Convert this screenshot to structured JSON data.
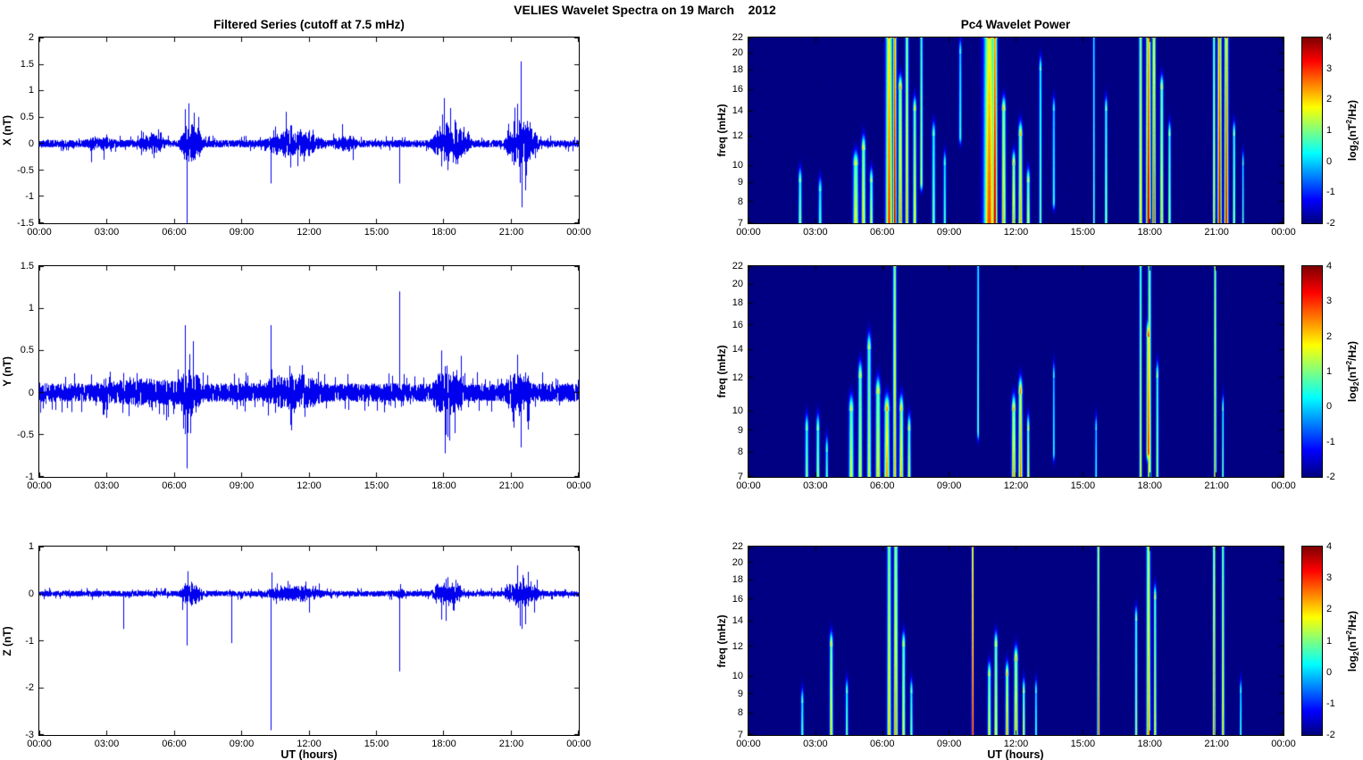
{
  "figure_title": "VELIES Wavelet Spectra on 19 March    2012",
  "panels": {
    "left_title": "Filtered Series (cutoff at 7.5 mHz)",
    "right_title": "Pc4 Wavelet Power"
  },
  "x_axis": {
    "label": "UT (hours)",
    "range_hours": [
      0,
      24
    ],
    "tick_hours": [
      0,
      3,
      6,
      9,
      12,
      15,
      18,
      21,
      24
    ],
    "tick_labels": [
      "00:00",
      "03:00",
      "06:00",
      "09:00",
      "12:00",
      "15:00",
      "18:00",
      "21:00",
      "00:00"
    ]
  },
  "colorbar": {
    "range": [
      -2,
      4
    ],
    "ticks": [
      4,
      3,
      2,
      1,
      0,
      -1,
      -2
    ],
    "label_parts": {
      "pre": "log",
      "sub": "2",
      "mid": "(nT",
      "sup": "2",
      "post": "/Hz)"
    },
    "colormap": "jet"
  },
  "style": {
    "line_color": "#0000ee",
    "axis_color": "#000000",
    "background": "#ffffff",
    "heatmap_background_value": -2
  },
  "chart_data": [
    {
      "id": "x-series",
      "type": "line",
      "title": "Filtered Series (cutoff at 7.5 mHz)",
      "ylabel": "X (nT)",
      "ylim": [
        -1.5,
        2
      ],
      "yticks": [
        2,
        1.5,
        1,
        0.5,
        0,
        -0.5,
        -1,
        -1.5
      ],
      "x_range_hours": [
        0,
        24
      ],
      "seed": 11,
      "noise_amp": 0.07,
      "bursts": [
        [
          2.0,
          3.5,
          0.05
        ],
        [
          4.4,
          5.7,
          0.1
        ],
        [
          6.2,
          7.3,
          0.28
        ],
        [
          9.9,
          12.7,
          0.16
        ],
        [
          13.0,
          14.2,
          0.08
        ],
        [
          17.4,
          19.3,
          0.26
        ],
        [
          20.7,
          22.3,
          0.34
        ]
      ],
      "spikes": [
        [
          2.3,
          -0.35
        ],
        [
          6.5,
          0.65
        ],
        [
          6.55,
          -1.5
        ],
        [
          10.3,
          -0.75
        ],
        [
          11.0,
          0.6
        ],
        [
          11.2,
          -0.45
        ],
        [
          16.05,
          -0.75
        ],
        [
          17.95,
          0.55
        ],
        [
          18.2,
          -0.5
        ],
        [
          18.5,
          0.45
        ],
        [
          21.3,
          0.75
        ],
        [
          21.45,
          1.55
        ],
        [
          21.5,
          -1.2
        ],
        [
          21.7,
          -0.6
        ]
      ]
    },
    {
      "id": "y-series",
      "type": "line",
      "ylabel": "Y (nT)",
      "ylim": [
        -1,
        1.5
      ],
      "yticks": [
        1.5,
        1,
        0.5,
        0,
        -0.5,
        -1
      ],
      "x_range_hours": [
        0,
        24
      ],
      "seed": 22,
      "noise_amp": 0.11,
      "bursts": [
        [
          2.5,
          7.5,
          0.05
        ],
        [
          6.2,
          7.2,
          0.14
        ],
        [
          9.9,
          12.7,
          0.1
        ],
        [
          17.4,
          19.0,
          0.16
        ],
        [
          20.7,
          22.0,
          0.12
        ]
      ],
      "spikes": [
        [
          3.0,
          -0.3
        ],
        [
          6.5,
          0.8
        ],
        [
          6.55,
          -0.9
        ],
        [
          10.3,
          0.8
        ],
        [
          16.05,
          1.2
        ],
        [
          17.9,
          0.5
        ],
        [
          18.1,
          -0.5
        ],
        [
          21.3,
          0.45
        ],
        [
          21.45,
          -0.65
        ]
      ]
    },
    {
      "id": "z-series",
      "type": "line",
      "ylabel": "Z (nT)",
      "ylim": [
        -3,
        1
      ],
      "yticks": [
        1,
        0,
        -1,
        -2,
        -3
      ],
      "x_range_hours": [
        0,
        24
      ],
      "seed": 33,
      "noise_amp": 0.06,
      "bursts": [
        [
          6.2,
          7.3,
          0.16
        ],
        [
          9.9,
          12.7,
          0.1
        ],
        [
          15.9,
          16.3,
          0.06
        ],
        [
          17.4,
          18.9,
          0.2
        ],
        [
          20.7,
          22.3,
          0.22
        ]
      ],
      "spikes": [
        [
          3.75,
          -0.75
        ],
        [
          6.55,
          -1.1
        ],
        [
          8.55,
          -1.05
        ],
        [
          10.3,
          -2.9
        ],
        [
          10.35,
          0.45
        ],
        [
          12.0,
          -0.4
        ],
        [
          16.05,
          -1.65
        ],
        [
          17.9,
          -0.55
        ],
        [
          18.2,
          0.35
        ],
        [
          21.3,
          0.6
        ],
        [
          21.5,
          -0.75
        ]
      ]
    },
    {
      "id": "x-wavelet",
      "type": "heatmap",
      "title": "Pc4 Wavelet Power",
      "ylabel": "freq (mHz)",
      "flim": [
        7,
        22
      ],
      "yticks": [
        22,
        20,
        18,
        16,
        14,
        12,
        10,
        9,
        8,
        7
      ],
      "scale": "log",
      "clim": [
        -2,
        4
      ],
      "seed": 44,
      "events": [
        [
          2.3,
          0.05,
          7,
          9,
          1.4
        ],
        [
          3.2,
          0.05,
          7,
          8.5,
          1.0
        ],
        [
          4.8,
          0.08,
          7,
          10,
          1.9
        ],
        [
          5.15,
          0.06,
          7,
          11,
          2.1
        ],
        [
          5.5,
          0.05,
          7,
          9,
          1.7
        ],
        [
          6.3,
          0.1,
          7,
          22,
          3.0
        ],
        [
          6.55,
          0.05,
          7,
          22,
          3.9
        ],
        [
          6.8,
          0.06,
          7,
          16,
          2.5
        ],
        [
          7.1,
          0.05,
          7,
          22,
          2.2
        ],
        [
          7.45,
          0.05,
          7,
          14,
          2.0
        ],
        [
          7.75,
          0.04,
          9,
          22,
          1.7
        ],
        [
          8.3,
          0.05,
          7,
          12,
          1.2
        ],
        [
          8.8,
          0.04,
          7,
          10,
          1.0
        ],
        [
          9.5,
          0.04,
          12,
          20,
          0.8
        ],
        [
          10.8,
          0.16,
          7,
          22,
          2.9
        ],
        [
          11.05,
          0.07,
          7,
          22,
          3.8
        ],
        [
          11.45,
          0.06,
          7,
          14,
          2.3
        ],
        [
          11.9,
          0.05,
          7,
          10,
          2.5
        ],
        [
          12.2,
          0.06,
          7,
          12,
          2.3
        ],
        [
          12.55,
          0.05,
          7,
          9,
          1.9
        ],
        [
          13.1,
          0.04,
          7,
          18,
          1.2
        ],
        [
          13.7,
          0.04,
          8,
          14,
          0.8
        ],
        [
          15.5,
          0.03,
          7,
          22,
          1.2
        ],
        [
          16.05,
          0.04,
          7,
          14,
          1.5
        ],
        [
          17.6,
          0.05,
          7,
          22,
          2.2
        ],
        [
          17.95,
          0.07,
          7,
          22,
          3.7
        ],
        [
          18.2,
          0.05,
          7,
          22,
          3.1
        ],
        [
          18.55,
          0.05,
          7,
          16,
          2.1
        ],
        [
          18.9,
          0.04,
          7,
          12,
          1.6
        ],
        [
          20.9,
          0.04,
          7,
          22,
          2.1
        ],
        [
          21.15,
          0.06,
          7,
          22,
          3.8
        ],
        [
          21.45,
          0.06,
          7,
          22,
          3.4
        ],
        [
          21.8,
          0.04,
          7,
          12,
          1.6
        ],
        [
          22.2,
          0.03,
          7,
          10,
          1.0
        ]
      ]
    },
    {
      "id": "y-wavelet",
      "type": "heatmap",
      "ylabel": "freq (mHz)",
      "flim": [
        7,
        22
      ],
      "yticks": [
        22,
        20,
        18,
        16,
        14,
        12,
        10,
        9,
        8,
        7
      ],
      "scale": "log",
      "clim": [
        -2,
        4
      ],
      "seed": 55,
      "events": [
        [
          2.6,
          0.05,
          7,
          9,
          1.3
        ],
        [
          3.1,
          0.05,
          7,
          9,
          1.5
        ],
        [
          3.5,
          0.04,
          7,
          8,
          1.1
        ],
        [
          4.6,
          0.07,
          7,
          10,
          1.7
        ],
        [
          5.0,
          0.06,
          7,
          12,
          1.9
        ],
        [
          5.4,
          0.06,
          7,
          14,
          1.7
        ],
        [
          5.8,
          0.07,
          7,
          11,
          2.1
        ],
        [
          6.2,
          0.08,
          7,
          10,
          2.5
        ],
        [
          6.55,
          0.05,
          7,
          22,
          2.3
        ],
        [
          6.85,
          0.06,
          7,
          10,
          2.3
        ],
        [
          7.2,
          0.05,
          7,
          9,
          1.7
        ],
        [
          10.3,
          0.03,
          9,
          22,
          1.3
        ],
        [
          11.9,
          0.06,
          7,
          10,
          2.5
        ],
        [
          12.2,
          0.06,
          7,
          11,
          2.7
        ],
        [
          12.55,
          0.04,
          7,
          9,
          1.9
        ],
        [
          13.7,
          0.03,
          8,
          12,
          0.8
        ],
        [
          15.6,
          0.03,
          7,
          9,
          0.8
        ],
        [
          17.6,
          0.04,
          7,
          22,
          1.8
        ],
        [
          17.95,
          0.06,
          8,
          15,
          3.1
        ],
        [
          18.0,
          0.05,
          7,
          22,
          2.1
        ],
        [
          18.35,
          0.04,
          7,
          12,
          1.5
        ],
        [
          20.95,
          0.035,
          7,
          22,
          2.5
        ],
        [
          21.3,
          0.03,
          7,
          10,
          1.3
        ]
      ]
    },
    {
      "id": "z-wavelet",
      "type": "heatmap",
      "ylabel": "freq (mHz)",
      "flim": [
        7,
        22
      ],
      "yticks": [
        22,
        20,
        18,
        16,
        14,
        12,
        10,
        9,
        8,
        7
      ],
      "scale": "log",
      "clim": [
        -2,
        4
      ],
      "seed": 66,
      "events": [
        [
          2.4,
          0.04,
          7,
          8.5,
          1.1
        ],
        [
          3.7,
          0.05,
          7,
          12,
          2.1
        ],
        [
          4.4,
          0.04,
          7,
          9,
          1.2
        ],
        [
          6.3,
          0.06,
          7,
          22,
          2.1
        ],
        [
          6.6,
          0.06,
          7,
          22,
          2.5
        ],
        [
          6.95,
          0.05,
          7,
          12,
          1.9
        ],
        [
          7.3,
          0.04,
          7,
          9,
          1.3
        ],
        [
          10.05,
          0.03,
          7,
          22,
          4.0
        ],
        [
          10.8,
          0.05,
          7,
          10,
          1.9
        ],
        [
          11.1,
          0.05,
          7,
          12,
          2.1
        ],
        [
          11.6,
          0.05,
          7,
          10,
          2.3
        ],
        [
          12.0,
          0.06,
          7,
          11,
          2.3
        ],
        [
          12.35,
          0.04,
          7,
          9,
          1.9
        ],
        [
          12.9,
          0.03,
          7,
          9,
          1.1
        ],
        [
          15.7,
          0.035,
          7,
          22,
          3.0
        ],
        [
          17.4,
          0.04,
          7,
          14,
          1.6
        ],
        [
          17.95,
          0.06,
          7,
          22,
          2.5
        ],
        [
          18.25,
          0.04,
          7,
          16,
          1.9
        ],
        [
          20.9,
          0.04,
          7,
          22,
          2.7
        ],
        [
          21.3,
          0.04,
          7,
          22,
          2.1
        ],
        [
          22.1,
          0.03,
          7,
          9,
          1.0
        ]
      ]
    }
  ]
}
